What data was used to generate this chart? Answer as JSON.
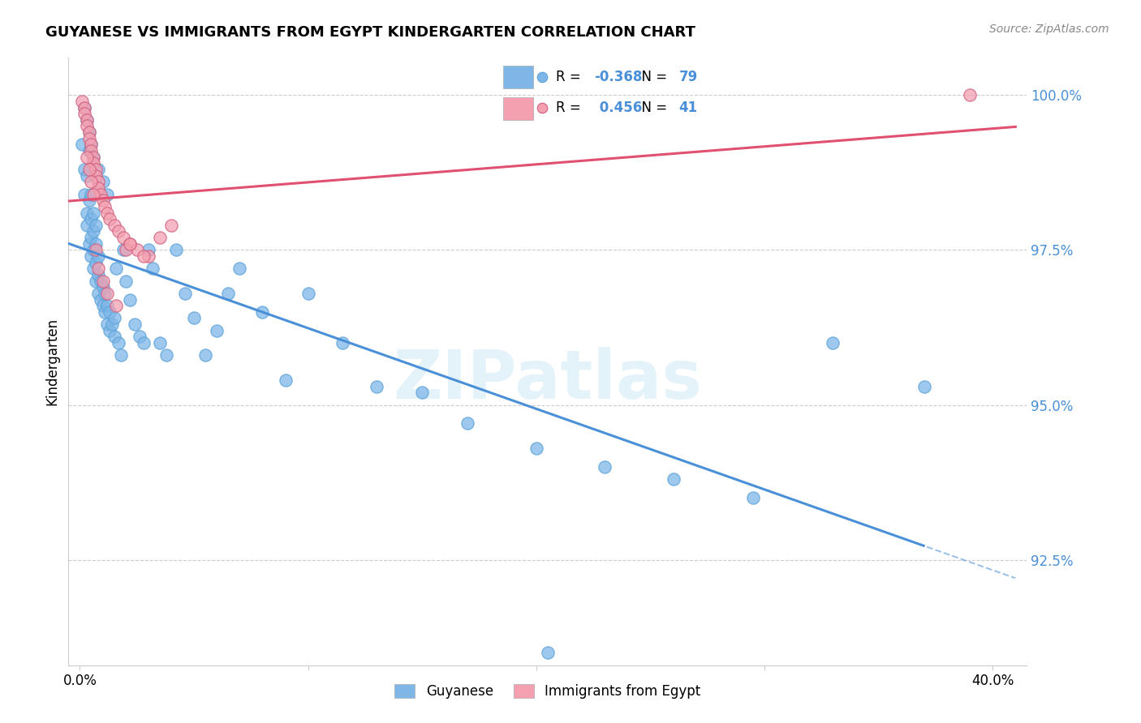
{
  "title": "GUYANESE VS IMMIGRANTS FROM EGYPT KINDERGARTEN CORRELATION CHART",
  "source": "Source: ZipAtlas.com",
  "ylabel": "Kindergarten",
  "ytick_labels": [
    "92.5%",
    "95.0%",
    "97.5%",
    "100.0%"
  ],
  "ytick_values": [
    0.925,
    0.95,
    0.975,
    1.0
  ],
  "xlim": [
    -0.005,
    0.415
  ],
  "ylim": [
    0.908,
    1.006
  ],
  "legend_label1": "Guyanese",
  "legend_label2": "Immigrants from Egypt",
  "R1": -0.368,
  "N1": 79,
  "R2": 0.456,
  "N2": 41,
  "blue_color": "#7EB6E8",
  "pink_color": "#F4A0B0",
  "blue_line_color": "#4A90D9",
  "pink_line_color": "#E05070",
  "watermark": "ZIPatlas",
  "blue_points_x": [
    0.001,
    0.002,
    0.002,
    0.003,
    0.003,
    0.003,
    0.004,
    0.004,
    0.004,
    0.005,
    0.005,
    0.005,
    0.005,
    0.006,
    0.006,
    0.006,
    0.006,
    0.007,
    0.007,
    0.007,
    0.007,
    0.008,
    0.008,
    0.008,
    0.009,
    0.009,
    0.01,
    0.01,
    0.011,
    0.011,
    0.012,
    0.012,
    0.013,
    0.013,
    0.014,
    0.015,
    0.015,
    0.016,
    0.017,
    0.018,
    0.019,
    0.02,
    0.022,
    0.024,
    0.026,
    0.028,
    0.03,
    0.032,
    0.035,
    0.038,
    0.042,
    0.046,
    0.05,
    0.055,
    0.06,
    0.065,
    0.07,
    0.08,
    0.09,
    0.1,
    0.115,
    0.13,
    0.15,
    0.17,
    0.2,
    0.23,
    0.26,
    0.295,
    0.33,
    0.37,
    0.002,
    0.003,
    0.004,
    0.005,
    0.006,
    0.008,
    0.01,
    0.012,
    0.205
  ],
  "blue_points_y": [
    0.992,
    0.988,
    0.984,
    0.981,
    0.987,
    0.979,
    0.983,
    0.976,
    0.991,
    0.974,
    0.977,
    0.98,
    0.984,
    0.972,
    0.975,
    0.978,
    0.981,
    0.97,
    0.973,
    0.976,
    0.979,
    0.968,
    0.971,
    0.974,
    0.967,
    0.97,
    0.966,
    0.969,
    0.965,
    0.968,
    0.963,
    0.966,
    0.962,
    0.965,
    0.963,
    0.961,
    0.964,
    0.972,
    0.96,
    0.958,
    0.975,
    0.97,
    0.967,
    0.963,
    0.961,
    0.96,
    0.975,
    0.972,
    0.96,
    0.958,
    0.975,
    0.968,
    0.964,
    0.958,
    0.962,
    0.968,
    0.972,
    0.965,
    0.954,
    0.968,
    0.96,
    0.953,
    0.952,
    0.947,
    0.943,
    0.94,
    0.938,
    0.935,
    0.96,
    0.953,
    0.998,
    0.996,
    0.994,
    0.992,
    0.99,
    0.988,
    0.986,
    0.984,
    0.91
  ],
  "pink_points_x": [
    0.001,
    0.002,
    0.002,
    0.003,
    0.003,
    0.004,
    0.004,
    0.005,
    0.005,
    0.006,
    0.006,
    0.007,
    0.007,
    0.008,
    0.008,
    0.009,
    0.01,
    0.011,
    0.012,
    0.013,
    0.015,
    0.017,
    0.019,
    0.022,
    0.025,
    0.03,
    0.035,
    0.04,
    0.003,
    0.004,
    0.005,
    0.006,
    0.007,
    0.008,
    0.01,
    0.012,
    0.016,
    0.02,
    0.028,
    0.022,
    0.39
  ],
  "pink_points_y": [
    0.999,
    0.998,
    0.997,
    0.996,
    0.995,
    0.994,
    0.993,
    0.992,
    0.991,
    0.99,
    0.989,
    0.988,
    0.987,
    0.986,
    0.985,
    0.984,
    0.983,
    0.982,
    0.981,
    0.98,
    0.979,
    0.978,
    0.977,
    0.976,
    0.975,
    0.974,
    0.977,
    0.979,
    0.99,
    0.988,
    0.986,
    0.984,
    0.975,
    0.972,
    0.97,
    0.968,
    0.966,
    0.975,
    0.974,
    0.976,
    1.0
  ]
}
